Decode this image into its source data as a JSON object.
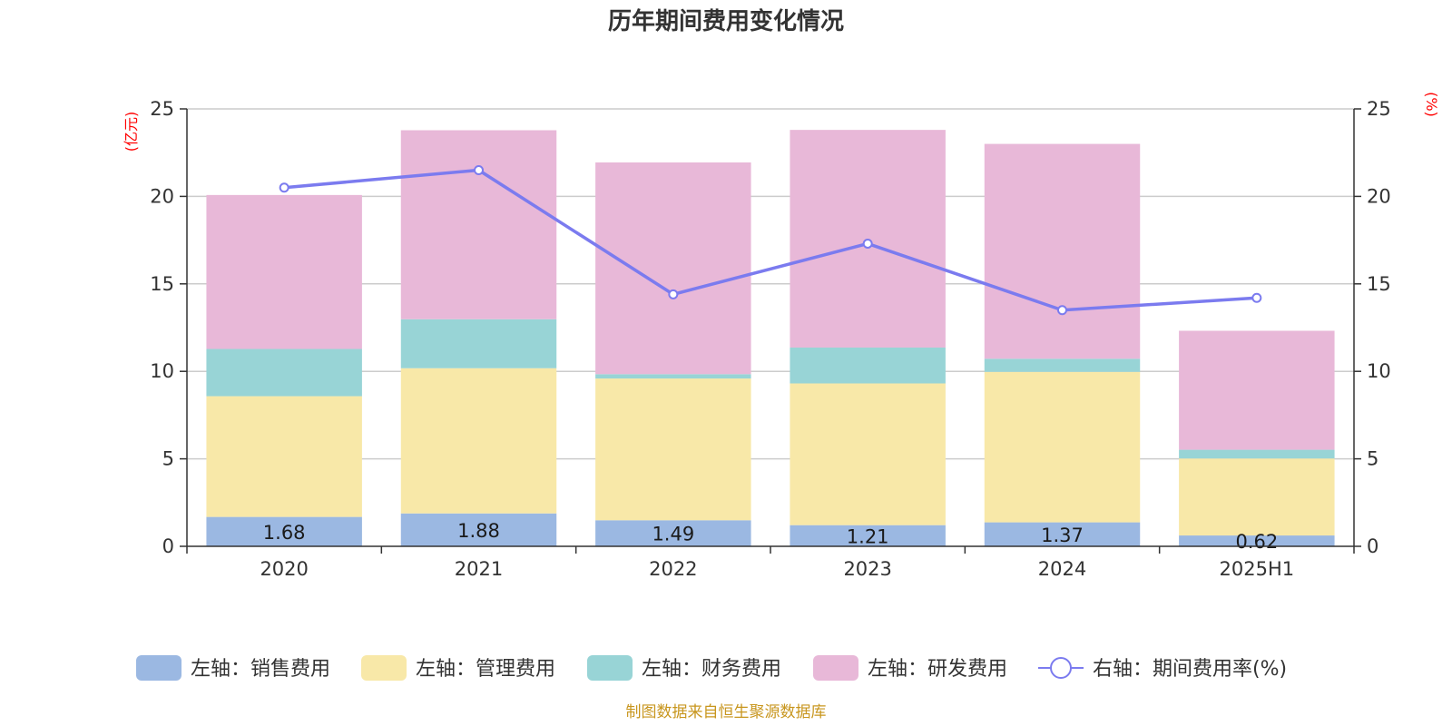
{
  "chart_data": {
    "type": "bar",
    "stacked": true,
    "title": "历年期间费用变化情况",
    "categories": [
      "2020",
      "2021",
      "2022",
      "2023",
      "2024",
      "2025H1"
    ],
    "left_axis": {
      "unit": "(亿元)",
      "ylim": [
        0,
        25
      ],
      "ticks": [
        "0",
        "5",
        "10",
        "15",
        "20",
        "25"
      ]
    },
    "right_axis": {
      "unit": "(%)",
      "ylim": [
        0,
        25
      ],
      "ticks": [
        "0",
        "5",
        "10",
        "15",
        "20",
        "25"
      ]
    },
    "series": [
      {
        "name": "左轴：销售费用",
        "axis": "left",
        "type": "bar",
        "color": "#9bb8e2",
        "values": [
          1.68,
          1.88,
          1.49,
          1.21,
          1.37,
          0.62
        ],
        "labels": [
          "1.68",
          "1.88",
          "1.49",
          "1.21",
          "1.37",
          "0.62"
        ]
      },
      {
        "name": "左轴：管理费用",
        "axis": "left",
        "type": "bar",
        "color": "#f8e8a8",
        "values": [
          6.9,
          8.3,
          8.1,
          8.1,
          8.6,
          4.4
        ]
      },
      {
        "name": "左轴：财务费用",
        "axis": "left",
        "type": "bar",
        "color": "#98d4d6",
        "values": [
          2.7,
          2.8,
          0.25,
          2.05,
          0.75,
          0.5
        ]
      },
      {
        "name": "左轴：研发费用",
        "axis": "left",
        "type": "bar",
        "color": "#e8b8d8",
        "values": [
          8.8,
          10.8,
          12.1,
          12.44,
          12.28,
          6.8
        ]
      },
      {
        "name": "右轴：期间费用率(%)",
        "axis": "right",
        "type": "line",
        "color": "#7b7bef",
        "values": [
          20.5,
          21.5,
          14.4,
          17.3,
          13.5,
          14.2
        ]
      }
    ],
    "grid": true,
    "legend_position": "bottom"
  },
  "source_note": "制图数据来自恒生聚源数据库"
}
